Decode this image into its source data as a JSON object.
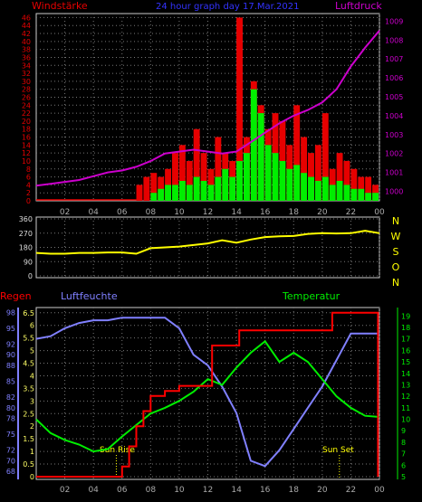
{
  "chart_data": [
    {
      "type": "bar",
      "title": "24 hour graph day 17.Mar.2021",
      "left_axis_title": "Windstärke",
      "right_axis_title": "Luftdruck",
      "x_ticks": [
        "02",
        "04",
        "06",
        "08",
        "10",
        "12",
        "14",
        "16",
        "18",
        "20",
        "22",
        "00"
      ],
      "left_ticks": [
        "0",
        "2",
        "4",
        "6",
        "8",
        "10",
        "12",
        "14",
        "16",
        "18",
        "20",
        "22",
        "24",
        "26",
        "28",
        "30",
        "32",
        "34",
        "36",
        "38",
        "40",
        "42",
        "44",
        "46"
      ],
      "right_ticks": [
        "1000",
        "1001",
        "1002",
        "1003",
        "1004",
        "1005",
        "1006",
        "1007",
        "1008",
        "1009"
      ],
      "ylim_left": [
        0,
        47
      ],
      "ylim_right": [
        999.5,
        1009.4
      ],
      "xlim_hours": [
        0,
        24
      ],
      "series": [
        {
          "name": "Windstärke",
          "color": "#e60000",
          "hours": [
            7.0,
            7.5,
            8.0,
            8.5,
            9.0,
            9.5,
            10.0,
            10.5,
            11.0,
            11.5,
            12.0,
            12.5,
            13.0,
            13.5,
            14.0,
            14.5,
            15.0,
            15.5,
            16.0,
            16.5,
            17.0,
            17.5,
            18.0,
            18.5,
            19.0,
            19.5,
            20.0,
            20.5,
            21.0,
            21.5,
            22.0,
            22.5,
            23.0,
            23.5
          ],
          "values": [
            4,
            6,
            7,
            6,
            8,
            12,
            14,
            10,
            18,
            12,
            8,
            16,
            12,
            10,
            46,
            16,
            30,
            24,
            18,
            22,
            20,
            14,
            24,
            16,
            12,
            14,
            22,
            8,
            12,
            10,
            8,
            6,
            6,
            4
          ]
        },
        {
          "name": "Windspitze",
          "color": "#00ee00",
          "hours": [
            8.0,
            8.5,
            9.0,
            9.5,
            10.0,
            10.5,
            11.0,
            11.5,
            12.0,
            12.5,
            13.0,
            13.5,
            14.0,
            14.5,
            15.0,
            15.5,
            16.0,
            16.5,
            17.0,
            17.5,
            18.0,
            18.5,
            19.0,
            19.5,
            20.0,
            20.5,
            21.0,
            21.5,
            22.0,
            22.5,
            23.0,
            23.5
          ],
          "values": [
            2,
            3,
            4,
            4,
            5,
            4,
            6,
            5,
            4,
            6,
            8,
            6,
            10,
            12,
            28,
            22,
            14,
            12,
            10,
            8,
            9,
            7,
            6,
            5,
            6,
            4,
            5,
            4,
            3,
            3,
            2,
            2
          ]
        },
        {
          "name": "Luftdruck",
          "color": "#cc00cc",
          "hours": [
            0,
            1,
            2,
            3,
            4,
            5,
            6,
            7,
            8,
            9,
            10,
            11,
            12,
            13,
            14,
            15,
            16,
            17,
            18,
            19,
            20,
            21,
            22,
            23,
            24
          ],
          "values": [
            1000.3,
            1000.4,
            1000.5,
            1000.6,
            1000.8,
            1001.0,
            1001.1,
            1001.3,
            1001.6,
            1002.0,
            1002.1,
            1002.2,
            1002.1,
            1002.0,
            1002.1,
            1002.6,
            1003.1,
            1003.6,
            1004.0,
            1004.3,
            1004.7,
            1005.4,
            1006.6,
            1007.6,
            1008.5
          ]
        }
      ]
    },
    {
      "type": "line",
      "left_ticks": [
        "0",
        "90",
        "180",
        "270",
        "360"
      ],
      "direction_labels": [
        "N",
        "W",
        "S",
        "O",
        "N"
      ],
      "x_ticks": [
        "02",
        "04",
        "06",
        "08",
        "10",
        "12",
        "14",
        "16",
        "18",
        "20",
        "22",
        "00"
      ],
      "ylim": [
        0,
        360
      ],
      "xlim_hours": [
        0,
        24
      ],
      "series": [
        {
          "name": "Windrichtung",
          "color": "#ffff00",
          "hours": [
            0,
            1,
            2,
            3,
            4,
            5,
            6,
            7,
            8,
            9,
            10,
            11,
            12,
            13,
            14,
            15,
            16,
            17,
            18,
            19,
            20,
            21,
            22,
            23,
            24
          ],
          "values": [
            145,
            140,
            140,
            145,
            145,
            148,
            148,
            140,
            175,
            180,
            185,
            195,
            205,
            225,
            210,
            230,
            245,
            250,
            252,
            265,
            270,
            268,
            270,
            285,
            270
          ]
        }
      ]
    },
    {
      "type": "line",
      "labels": {
        "left": "Regen",
        "middle": "Luftfeuchte",
        "right": "Temperatur",
        "sunrise": "Sun Rise",
        "sunset": "Sun Set"
      },
      "rain_ticks": [
        "0",
        "0.5",
        "1",
        "1.5",
        "2",
        "2.5",
        "3",
        "3.5",
        "4",
        "4.5",
        "5",
        "5.5",
        "6",
        "6.5"
      ],
      "humidity_ticks": [
        "68",
        "70",
        "72",
        "75",
        "78",
        "80",
        "82",
        "85",
        "88",
        "90",
        "92",
        "95",
        "98"
      ],
      "temp_ticks": [
        "5",
        "6",
        "7",
        "8",
        "9",
        "10",
        "11",
        "12",
        "13",
        "14",
        "15",
        "16",
        "17",
        "18",
        "19"
      ],
      "x_ticks": [
        "02",
        "04",
        "06",
        "08",
        "10",
        "12",
        "14",
        "16",
        "18",
        "20",
        "22",
        "00"
      ],
      "xlim_hours": [
        0,
        24
      ],
      "ylim_rain": [
        0,
        6.6
      ],
      "ylim_humidity": [
        67,
        98.4
      ],
      "ylim_temp": [
        5,
        19.5
      ],
      "sunrise_hour": 5.6,
      "sunset_hour": 21.2,
      "series": [
        {
          "name": "Regen",
          "color": "#ff0000",
          "hours": [
            0,
            5.5,
            6.0,
            6.5,
            7.0,
            7.5,
            8.0,
            9.0,
            10.0,
            11.0,
            12.0,
            12.3,
            14.0,
            14.2,
            20.5,
            20.7,
            23.8,
            23.9
          ],
          "values": [
            0,
            0,
            0.4,
            1.2,
            2.0,
            2.6,
            3.2,
            3.4,
            3.6,
            3.6,
            3.6,
            5.2,
            5.2,
            5.8,
            5.8,
            6.5,
            6.5,
            0
          ]
        },
        {
          "name": "Luftfeuchte",
          "color": "#8080ff",
          "hours": [
            0,
            1,
            2,
            3,
            4,
            5,
            6,
            7,
            8,
            9,
            10,
            11,
            12,
            13,
            14,
            15,
            16,
            17,
            18,
            19,
            20,
            21,
            22,
            23,
            24
          ],
          "values": [
            93,
            93.5,
            95,
            96,
            96.5,
            96.5,
            97,
            97,
            97,
            97,
            95,
            90,
            88,
            84,
            79,
            70,
            69,
            72,
            76,
            80,
            84,
            89,
            94,
            94,
            94
          ]
        },
        {
          "name": "Temperatur",
          "color": "#00ee00",
          "hours": [
            0,
            1,
            2,
            3,
            4,
            5,
            6,
            7,
            8,
            9,
            10,
            11,
            12,
            13,
            14,
            15,
            16,
            17,
            18,
            19,
            20,
            21,
            22,
            23,
            24
          ],
          "values": [
            10,
            8.8,
            8.2,
            7.8,
            7.2,
            7.4,
            8.5,
            9.5,
            10.5,
            11.0,
            11.6,
            12.4,
            13.5,
            13.0,
            14.5,
            15.8,
            16.8,
            15.0,
            15.8,
            15.0,
            13.5,
            12.0,
            11.0,
            10.3,
            10.2
          ]
        }
      ]
    }
  ]
}
